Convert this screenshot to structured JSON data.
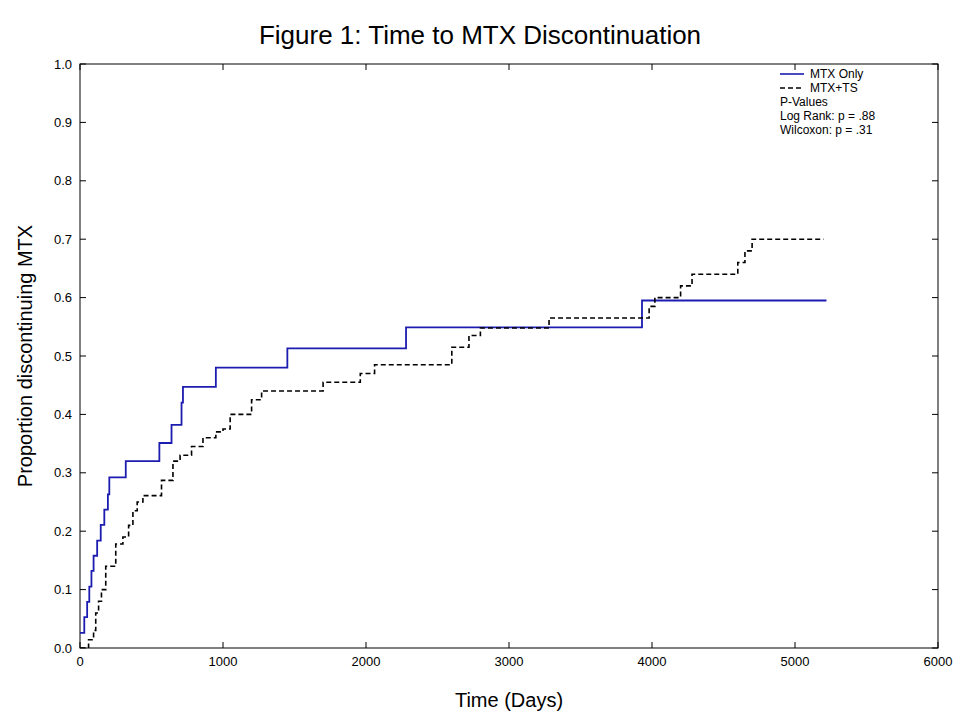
{
  "chart_data": {
    "type": "step",
    "title": "Figure 1: Time to MTX Discontinuation",
    "x_label": "Time (Days)",
    "y_label": "Proportion discontinuing MTX",
    "xlim": [
      0,
      6000
    ],
    "ylim": [
      0,
      1
    ],
    "xticks": [
      0,
      1000,
      2000,
      3000,
      4000,
      5000,
      6000
    ],
    "yticks": [
      {
        "value": 0,
        "label": "0.0"
      },
      0.1,
      0.2,
      0.3,
      0.4,
      0.5,
      0.6,
      0.7,
      0.8,
      0.9,
      {
        "value": 1,
        "label": "1.0"
      }
    ],
    "legend": "top-right",
    "annotations": [
      "P-Values",
      "Log Rank: p = .88",
      "Wilcoxon: p = .31"
    ],
    "series": [
      {
        "name": "MTX Only",
        "color": "#1c1cb0",
        "line_style": "solid",
        "x": [
          0,
          30,
          50,
          65,
          80,
          95,
          120,
          145,
          170,
          195,
          205,
          320,
          555,
          640,
          710,
          720,
          950,
          1450,
          2280,
          3930,
          5220
        ],
        "values": [
          0.026,
          0.053,
          0.079,
          0.105,
          0.132,
          0.158,
          0.184,
          0.211,
          0.237,
          0.263,
          0.292,
          0.32,
          0.351,
          0.382,
          0.42,
          0.447,
          0.48,
          0.513,
          0.549,
          0.595,
          0.595
        ]
      },
      {
        "name": "MTX+TS",
        "color": "#000000",
        "line_style": "dashed",
        "x": [
          0,
          60,
          95,
          110,
          130,
          150,
          180,
          250,
          300,
          340,
          370,
          400,
          440,
          570,
          650,
          700,
          780,
          860,
          950,
          1000,
          1050,
          1200,
          1270,
          1700,
          1960,
          2060,
          2600,
          2720,
          2800,
          3280,
          3980,
          4020,
          4200,
          4280,
          4600,
          4650,
          4700,
          5200
        ],
        "values": [
          0,
          0.014,
          0.03,
          0.06,
          0.08,
          0.1,
          0.14,
          0.178,
          0.19,
          0.21,
          0.235,
          0.25,
          0.261,
          0.287,
          0.32,
          0.33,
          0.345,
          0.36,
          0.37,
          0.375,
          0.4,
          0.425,
          0.44,
          0.455,
          0.47,
          0.485,
          0.515,
          0.535,
          0.548,
          0.565,
          0.585,
          0.6,
          0.62,
          0.64,
          0.66,
          0.68,
          0.7,
          0.7
        ]
      }
    ]
  }
}
